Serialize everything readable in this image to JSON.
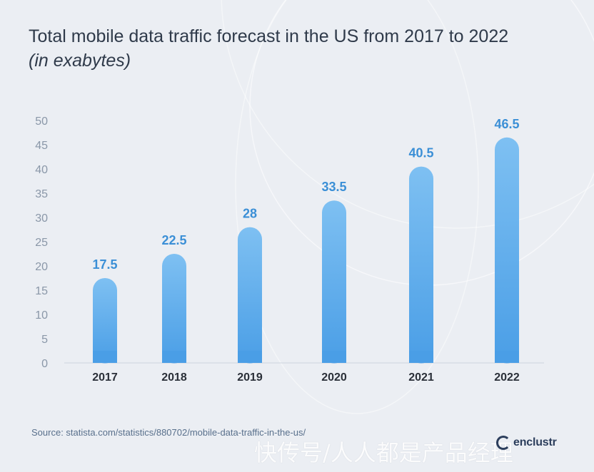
{
  "title": {
    "main": "Total mobile data traffic forecast in the US from 2017 to 2022",
    "sub": "(in exabytes)"
  },
  "source": "Source: statista.com/statistics/880702/mobile-data-traffic-in-the-us/",
  "brand": {
    "name": "enclustr",
    "logo_icon": "c-ring-icon"
  },
  "watermark": "快传号/人人都是产品经理",
  "colors": {
    "bar_top": "#7ec0f2",
    "bar_bottom": "#4a9ee6",
    "label": "#3b8fd6",
    "axis_text": "#8a97a8",
    "category_text": "#2a2f38"
  },
  "chart_data": {
    "type": "bar",
    "title": "Total mobile data traffic forecast in the US from 2017 to 2022",
    "subtitle": "(in exabytes)",
    "xlabel": "",
    "ylabel": "",
    "categories": [
      "2017",
      "2018",
      "2019",
      "2020",
      "2021",
      "2022"
    ],
    "values": [
      17.5,
      22.5,
      28,
      33.5,
      40.5,
      46.5
    ],
    "value_labels": [
      "17.5",
      "22.5",
      "28",
      "33.5",
      "40.5",
      "46.5"
    ],
    "ylim": [
      0,
      50
    ],
    "yticks": [
      "0",
      "5",
      "10",
      "15",
      "20",
      "25",
      "30",
      "35",
      "40",
      "45",
      "50"
    ],
    "grid": false,
    "legend": "none"
  }
}
